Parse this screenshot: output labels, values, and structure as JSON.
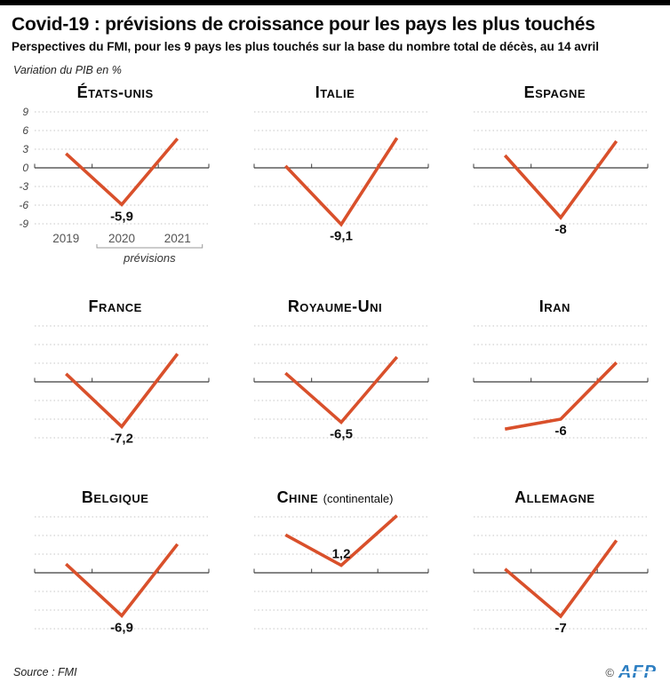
{
  "header": {
    "title": "Covid-19 : prévisions de croissance pour les pays les plus touchés",
    "subtitle": "Perspectives du FMI, pour les 9 pays les plus touchés sur la base du nombre total de décès, au 14 avril",
    "unit_label": "Variation du PIB en %"
  },
  "footer": {
    "source": "Source : FMI",
    "copyright": "©",
    "credit": "AFP"
  },
  "chart_data": {
    "type": "line",
    "x": [
      2019,
      2020,
      2021
    ],
    "x_tick_labels": [
      "2019",
      "2020",
      "2021"
    ],
    "y_tick_labels": [
      "9",
      "6",
      "3",
      "0",
      "-3",
      "-6",
      "-9"
    ],
    "grid_values": [
      9,
      6,
      3,
      -3,
      -6,
      -9
    ],
    "ylim": [
      -9,
      9
    ],
    "forecast_label": "prévisions",
    "forecast_years": [
      "2020",
      "2021"
    ],
    "line_color": "#d9502b",
    "grid_on": true,
    "legend_position": "first-chart-only",
    "charts": [
      {
        "title": "États-unis",
        "values": [
          2.3,
          -5.9,
          4.7
        ],
        "label": "-5,9",
        "label_position": "below",
        "show_axis_labels": true
      },
      {
        "title": "Italie",
        "values": [
          0.3,
          -9.1,
          4.8
        ],
        "label": "-9,1",
        "label_position": "below"
      },
      {
        "title": "Espagne",
        "values": [
          2.0,
          -8.0,
          4.3
        ],
        "label": "-8",
        "label_position": "below"
      },
      {
        "title": "France",
        "values": [
          1.3,
          -7.2,
          4.5
        ],
        "label": "-7,2",
        "label_position": "below"
      },
      {
        "title": "Royaume-Uni",
        "values": [
          1.4,
          -6.5,
          4.0
        ],
        "label": "-6,5",
        "label_position": "below"
      },
      {
        "title": "Iran",
        "values": [
          -7.6,
          -6.0,
          3.1
        ],
        "label": "-6",
        "label_position": "below"
      },
      {
        "title": "Belgique",
        "values": [
          1.4,
          -6.9,
          4.6
        ],
        "label": "-6,9",
        "label_position": "below"
      },
      {
        "title": "Chine",
        "title_suffix": "(continentale)",
        "values": [
          6.1,
          1.2,
          9.2
        ],
        "label": "1,2",
        "label_position": "above"
      },
      {
        "title": "Allemagne",
        "values": [
          0.6,
          -7.0,
          5.2
        ],
        "label": "-7",
        "label_position": "below"
      }
    ]
  }
}
